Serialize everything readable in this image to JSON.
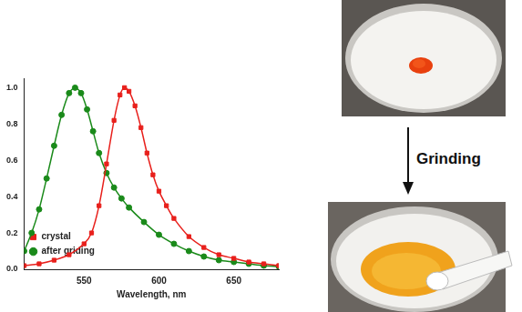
{
  "chart_data": {
    "type": "line",
    "x_label": "Wavelength, nm",
    "xlim": [
      510,
      680
    ],
    "xticks": [
      550,
      600,
      650
    ],
    "ylim": [
      0,
      1.05
    ],
    "yticks": [
      {
        "value": 0,
        "label": "0.0"
      },
      0.2,
      0.4,
      0.6,
      0.8,
      {
        "value": 1,
        "label": "1.0"
      }
    ],
    "grid": false,
    "legend": "upper right",
    "series": [
      {
        "name": "crystal",
        "color": "#e8201c",
        "marker": "square",
        "line_style": "solid",
        "x": [
          510,
          520,
          530,
          540,
          550,
          555,
          560,
          565,
          570,
          574,
          577,
          580,
          584,
          588,
          592,
          596,
          600,
          605,
          610,
          620,
          630,
          640,
          650,
          660,
          670,
          680
        ],
        "values": [
          0.02,
          0.03,
          0.05,
          0.08,
          0.14,
          0.2,
          0.35,
          0.58,
          0.82,
          0.96,
          1.0,
          0.98,
          0.9,
          0.78,
          0.64,
          0.52,
          0.43,
          0.35,
          0.28,
          0.18,
          0.12,
          0.08,
          0.06,
          0.04,
          0.03,
          0.02
        ]
      },
      {
        "name": "after griding",
        "color": "#1a8a1a",
        "marker": "circle",
        "line_style": "solid",
        "x": [
          510,
          515,
          520,
          525,
          530,
          535,
          540,
          544,
          548,
          552,
          556,
          560,
          565,
          570,
          575,
          580,
          590,
          600,
          610,
          620,
          630,
          640,
          650,
          660,
          670,
          680
        ],
        "values": [
          0.1,
          0.2,
          0.33,
          0.5,
          0.68,
          0.85,
          0.97,
          1.0,
          0.97,
          0.88,
          0.76,
          0.64,
          0.53,
          0.45,
          0.39,
          0.34,
          0.26,
          0.19,
          0.14,
          0.1,
          0.07,
          0.05,
          0.04,
          0.03,
          0.02,
          0.015
        ]
      }
    ]
  },
  "figure": {
    "arrow_label": "Grinding"
  }
}
